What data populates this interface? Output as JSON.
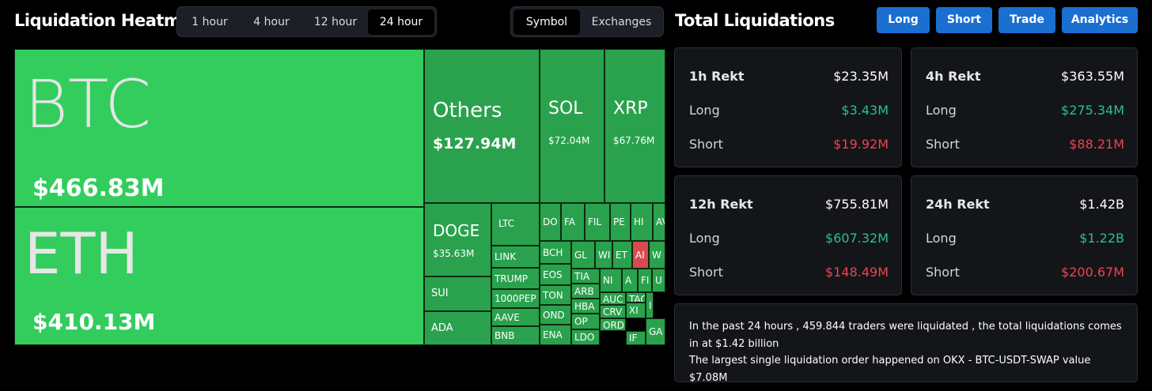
{
  "header": {
    "title": "Liquidation Heatmap",
    "time_tabs": [
      {
        "label": "1 hour",
        "active": false
      },
      {
        "label": "4 hour",
        "active": false
      },
      {
        "label": "12 hour",
        "active": false
      },
      {
        "label": "24 hour",
        "active": true
      }
    ],
    "view_tabs": [
      {
        "label": "Symbol",
        "active": true
      },
      {
        "label": "Exchanges",
        "active": false
      }
    ]
  },
  "summary": {
    "title": "Total Liquidations",
    "buttons": [
      "Long",
      "Short",
      "Trade",
      "Analytics"
    ],
    "cards": [
      {
        "period": "1h Rekt",
        "total": "$23.35M",
        "long_label": "Long",
        "long": "$3.43M",
        "short_label": "Short",
        "short": "$19.92M"
      },
      {
        "period": "4h Rekt",
        "total": "$363.55M",
        "long_label": "Long",
        "long": "$275.34M",
        "short_label": "Short",
        "short": "$88.21M"
      },
      {
        "period": "12h Rekt",
        "total": "$755.81M",
        "long_label": "Long",
        "long": "$607.32M",
        "short_label": "Short",
        "short": "$148.49M"
      },
      {
        "period": "24h Rekt",
        "total": "$1.42B",
        "long_label": "Long",
        "long": "$1.22B",
        "short_label": "Short",
        "short": "$200.67M"
      }
    ],
    "info_line1": "In the past 24 hours , 459.844 traders were liquidated , the total liquidations comes in at $1.42 billion",
    "info_line2": "The largest single liquidation order happened on OKX - BTC-USDT-SWAP value $7.08M"
  },
  "colors": {
    "tile_bright": "#32cd5d",
    "tile_mid": "#2aa24d",
    "tile_dark": "#1f8a3e",
    "tile_red": "#d84a52",
    "button_blue": "#1a6fd1"
  },
  "heatmap": {
    "tiles": [
      {
        "symbol": "BTC",
        "value": "$466.83M"
      },
      {
        "symbol": "ETH",
        "value": "$410.13M"
      },
      {
        "symbol": "Others",
        "value": "$127.94M"
      },
      {
        "symbol": "SOL",
        "value": "$72.04M"
      },
      {
        "symbol": "XRP",
        "value": "$67.76M"
      },
      {
        "symbol": "DOGE",
        "value": "$35.63M"
      },
      {
        "symbol": "LTC"
      },
      {
        "symbol": "LINK"
      },
      {
        "symbol": "TRUMP"
      },
      {
        "symbol": "1000PEP"
      },
      {
        "symbol": "AAVE"
      },
      {
        "symbol": "BNB"
      },
      {
        "symbol": "SUI"
      },
      {
        "symbol": "ADA"
      },
      {
        "symbol": "DO"
      },
      {
        "symbol": "FA"
      },
      {
        "symbol": "FIL"
      },
      {
        "symbol": "PE"
      },
      {
        "symbol": "HI"
      },
      {
        "symbol": "AV"
      },
      {
        "symbol": "BCH"
      },
      {
        "symbol": "EOS"
      },
      {
        "symbol": "TON"
      },
      {
        "symbol": "OND"
      },
      {
        "symbol": "ENA"
      },
      {
        "symbol": "GL"
      },
      {
        "symbol": "WI"
      },
      {
        "symbol": "ET"
      },
      {
        "symbol": "AI"
      },
      {
        "symbol": "W"
      },
      {
        "symbol": "TIA"
      },
      {
        "symbol": "ARB"
      },
      {
        "symbol": "HBA"
      },
      {
        "symbol": "OP"
      },
      {
        "symbol": "LDO"
      },
      {
        "symbol": "NI"
      },
      {
        "symbol": "A"
      },
      {
        "symbol": "FI"
      },
      {
        "symbol": "U"
      },
      {
        "symbol": "AUC"
      },
      {
        "symbol": "TAC"
      },
      {
        "symbol": "CRV"
      },
      {
        "symbol": "ORD"
      },
      {
        "symbol": "I"
      },
      {
        "symbol": "XI"
      },
      {
        "symbol": "IF"
      },
      {
        "symbol": "GA"
      }
    ]
  }
}
